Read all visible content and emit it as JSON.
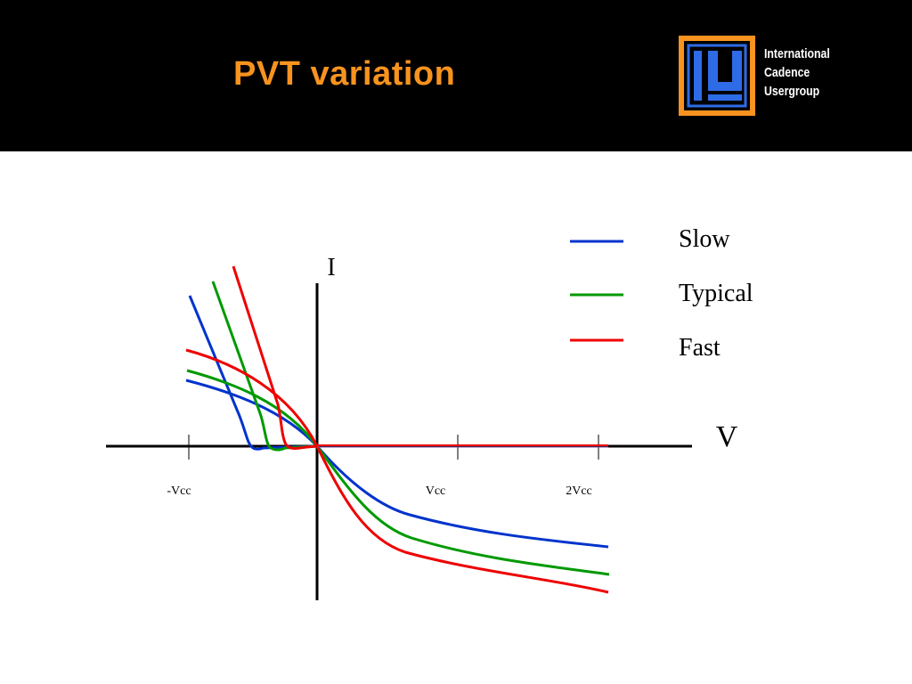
{
  "slide": {
    "title": "PVT variation",
    "title_color": "#F7931E",
    "header_background": "#000000"
  },
  "logo": {
    "icon": "icu-logo-icon",
    "lines": [
      "International",
      "Cadence",
      "Usergroup"
    ],
    "colors": {
      "frame": "#F7931E",
      "inner": "#2E6BE6",
      "text": "#FFFFFF"
    }
  },
  "diagram": {
    "x_axis_label": "V",
    "y_axis_label": "I",
    "ticks": [
      "-Vcc",
      "Vcc",
      "2Vcc"
    ],
    "legend": [
      {
        "name": "Slow",
        "color": "#0033CC"
      },
      {
        "name": "Typical",
        "color": "#009900"
      },
      {
        "name": "Fast",
        "color": "#EE0000"
      }
    ]
  }
}
